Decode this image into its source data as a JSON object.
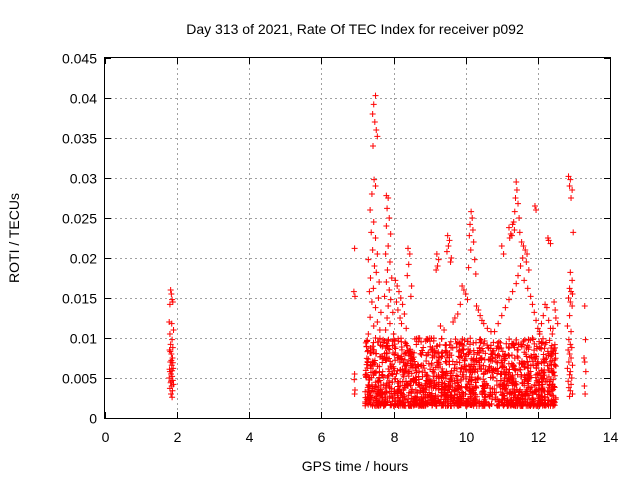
{
  "chart_data": {
    "type": "scatter",
    "title": "Day 313 of 2021, Rate Of TEC Index for receiver p092",
    "xlabel": "GPS time / hours",
    "ylabel": "ROTI / TECUs",
    "xlim": [
      0,
      14
    ],
    "ylim": [
      0,
      0.045
    ],
    "xticks": [
      0,
      2,
      4,
      6,
      8,
      10,
      12,
      14
    ],
    "xtick_labels": [
      "0",
      "2",
      "4",
      "6",
      "8",
      "10",
      "12",
      "14"
    ],
    "yticks": [
      0,
      0.005,
      0.01,
      0.015,
      0.02,
      0.025,
      0.03,
      0.035,
      0.04,
      0.045
    ],
    "ytick_labels": [
      "0",
      "0.005",
      "0.01",
      "0.015",
      "0.02",
      "0.025",
      "0.03",
      "0.035",
      "0.04",
      "0.045"
    ],
    "grid": true,
    "marker": "+",
    "series": [
      {
        "name": "p092",
        "color": "#ff0000",
        "points": [
          [
            1.82,
            0.016
          ],
          [
            1.84,
            0.0155
          ],
          [
            1.86,
            0.0148
          ],
          [
            1.8,
            0.0142
          ],
          [
            1.88,
            0.0145
          ],
          [
            1.78,
            0.012
          ],
          [
            1.85,
            0.0118
          ],
          [
            1.9,
            0.011
          ],
          [
            1.8,
            0.0105
          ],
          [
            1.86,
            0.0098
          ],
          [
            1.82,
            0.0092
          ],
          [
            1.88,
            0.0088
          ],
          [
            1.79,
            0.0085
          ],
          [
            1.84,
            0.008
          ],
          [
            1.87,
            0.0075
          ],
          [
            1.81,
            0.007
          ],
          [
            1.85,
            0.0066
          ],
          [
            1.89,
            0.0062
          ],
          [
            1.8,
            0.0058
          ],
          [
            1.83,
            0.0055
          ],
          [
            1.86,
            0.0052
          ],
          [
            1.78,
            0.005
          ],
          [
            1.88,
            0.0047
          ],
          [
            1.82,
            0.0044
          ],
          [
            1.85,
            0.004
          ],
          [
            1.8,
            0.0037
          ],
          [
            1.87,
            0.0034
          ],
          [
            1.83,
            0.003
          ],
          [
            1.86,
            0.0026
          ],
          [
            1.9,
            0.0042
          ],
          [
            1.79,
            0.0061
          ],
          [
            1.84,
            0.0072
          ],
          [
            1.81,
            0.0083
          ],
          [
            1.88,
            0.0069
          ],
          [
            1.86,
            0.0059
          ],
          [
            1.83,
            0.0046
          ],
          [
            6.92,
            0.0212
          ],
          [
            6.9,
            0.0158
          ],
          [
            6.93,
            0.0152
          ],
          [
            6.92,
            0.0055
          ],
          [
            6.91,
            0.0048
          ],
          [
            6.93,
            0.0035
          ],
          [
            6.92,
            0.003
          ],
          [
            7.5,
            0.0403
          ],
          [
            7.45,
            0.0392
          ],
          [
            7.42,
            0.038
          ],
          [
            7.48,
            0.037
          ],
          [
            7.52,
            0.036
          ],
          [
            7.55,
            0.0352
          ],
          [
            7.43,
            0.034
          ],
          [
            7.46,
            0.0298
          ],
          [
            7.5,
            0.029
          ],
          [
            7.4,
            0.028
          ],
          [
            7.35,
            0.026
          ],
          [
            7.45,
            0.0245
          ],
          [
            7.38,
            0.0232
          ],
          [
            7.5,
            0.0225
          ],
          [
            7.42,
            0.021
          ],
          [
            7.55,
            0.0205
          ],
          [
            7.3,
            0.0198
          ],
          [
            7.47,
            0.019
          ],
          [
            7.52,
            0.0182
          ],
          [
            7.36,
            0.0175
          ],
          [
            7.6,
            0.017
          ],
          [
            7.44,
            0.0162
          ],
          [
            7.33,
            0.0158
          ],
          [
            7.58,
            0.015
          ],
          [
            7.4,
            0.0145
          ],
          [
            7.5,
            0.0138
          ],
          [
            7.65,
            0.0132
          ],
          [
            7.35,
            0.0126
          ],
          [
            7.55,
            0.012
          ],
          [
            7.45,
            0.0115
          ],
          [
            7.62,
            0.011
          ],
          [
            7.3,
            0.0105
          ],
          [
            7.5,
            0.01
          ],
          [
            7.8,
            0.0278
          ],
          [
            7.85,
            0.0275
          ],
          [
            7.82,
            0.0262
          ],
          [
            7.88,
            0.025
          ],
          [
            7.8,
            0.024
          ],
          [
            7.92,
            0.023
          ],
          [
            7.85,
            0.0215
          ],
          [
            7.78,
            0.0205
          ],
          [
            7.9,
            0.0195
          ],
          [
            7.83,
            0.0185
          ],
          [
            7.95,
            0.0175
          ],
          [
            7.8,
            0.017
          ],
          [
            7.88,
            0.016
          ],
          [
            7.75,
            0.0152
          ],
          [
            7.92,
            0.0148
          ],
          [
            7.85,
            0.014
          ],
          [
            7.98,
            0.0132
          ],
          [
            7.82,
            0.0125
          ],
          [
            7.9,
            0.0118
          ],
          [
            7.78,
            0.011
          ],
          [
            8.0,
            0.0105
          ],
          [
            7.86,
            0.0098
          ],
          [
            8.05,
            0.0172
          ],
          [
            8.1,
            0.0165
          ],
          [
            8.15,
            0.0158
          ],
          [
            8.2,
            0.015
          ],
          [
            8.08,
            0.0145
          ],
          [
            8.25,
            0.0142
          ],
          [
            8.12,
            0.0135
          ],
          [
            8.3,
            0.013
          ],
          [
            8.18,
            0.0125
          ],
          [
            8.22,
            0.0118
          ],
          [
            8.35,
            0.0112
          ],
          [
            8.4,
            0.0212
          ],
          [
            8.45,
            0.0205
          ],
          [
            8.42,
            0.0192
          ],
          [
            8.38,
            0.0178
          ],
          [
            8.5,
            0.0165
          ],
          [
            8.48,
            0.0152
          ],
          [
            9.2,
            0.0205
          ],
          [
            9.25,
            0.0198
          ],
          [
            9.22,
            0.019
          ],
          [
            9.18,
            0.0185
          ],
          [
            9.5,
            0.0228
          ],
          [
            9.55,
            0.0222
          ],
          [
            9.52,
            0.0215
          ],
          [
            9.48,
            0.0208
          ],
          [
            9.6,
            0.02
          ],
          [
            9.58,
            0.0195
          ],
          [
            10.15,
            0.0258
          ],
          [
            10.18,
            0.025
          ],
          [
            10.12,
            0.0242
          ],
          [
            10.2,
            0.0235
          ],
          [
            10.1,
            0.0228
          ],
          [
            10.22,
            0.022
          ],
          [
            10.14,
            0.021
          ],
          [
            10.25,
            0.0198
          ],
          [
            10.08,
            0.0188
          ],
          [
            10.28,
            0.018
          ],
          [
            9.9,
            0.0165
          ],
          [
            9.95,
            0.016
          ],
          [
            10.0,
            0.0155
          ],
          [
            10.05,
            0.0148
          ],
          [
            9.85,
            0.0142
          ],
          [
            10.3,
            0.014
          ],
          [
            10.35,
            0.0135
          ],
          [
            9.78,
            0.013
          ],
          [
            10.4,
            0.0128
          ],
          [
            9.7,
            0.0125
          ],
          [
            10.45,
            0.0122
          ],
          [
            9.65,
            0.012
          ],
          [
            10.5,
            0.0118
          ],
          [
            9.3,
            0.0115
          ],
          [
            10.6,
            0.0112
          ],
          [
            9.4,
            0.011
          ],
          [
            10.7,
            0.0108
          ],
          [
            11.0,
            0.0215
          ],
          [
            11.05,
            0.0205
          ],
          [
            11.2,
            0.0238
          ],
          [
            11.25,
            0.023
          ],
          [
            11.22,
            0.0225
          ],
          [
            11.3,
            0.0242
          ],
          [
            11.35,
            0.0235
          ],
          [
            11.4,
            0.0295
          ],
          [
            11.42,
            0.0285
          ],
          [
            11.38,
            0.0275
          ],
          [
            11.45,
            0.0268
          ],
          [
            11.36,
            0.0258
          ],
          [
            11.48,
            0.025
          ],
          [
            11.33,
            0.0245
          ],
          [
            11.5,
            0.0232
          ],
          [
            11.28,
            0.0228
          ],
          [
            11.55,
            0.022
          ],
          [
            11.6,
            0.0215
          ],
          [
            11.65,
            0.021
          ],
          [
            11.7,
            0.0205
          ],
          [
            11.58,
            0.02
          ],
          [
            11.68,
            0.0195
          ],
          [
            11.52,
            0.019
          ],
          [
            11.75,
            0.0185
          ],
          [
            11.45,
            0.0178
          ],
          [
            11.62,
            0.0172
          ],
          [
            11.4,
            0.0168
          ],
          [
            11.72,
            0.0162
          ],
          [
            11.3,
            0.0158
          ],
          [
            11.8,
            0.0152
          ],
          [
            11.2,
            0.0148
          ],
          [
            11.85,
            0.0142
          ],
          [
            11.1,
            0.0138
          ],
          [
            11.9,
            0.0132
          ],
          [
            11.0,
            0.0128
          ],
          [
            11.95,
            0.0122
          ],
          [
            10.9,
            0.0118
          ],
          [
            12.0,
            0.0112
          ],
          [
            10.8,
            0.0108
          ],
          [
            12.05,
            0.0105
          ],
          [
            11.92,
            0.0265
          ],
          [
            11.95,
            0.026
          ],
          [
            12.2,
            0.0142
          ],
          [
            12.25,
            0.0138
          ],
          [
            12.15,
            0.0128
          ],
          [
            12.3,
            0.0122
          ],
          [
            12.1,
            0.0118
          ],
          [
            12.35,
            0.0112
          ],
          [
            12.05,
            0.0108
          ],
          [
            12.4,
            0.0105
          ],
          [
            12.45,
            0.0145
          ],
          [
            12.48,
            0.0135
          ],
          [
            12.5,
            0.0125
          ],
          [
            12.55,
            0.0118
          ],
          [
            12.42,
            0.0112
          ],
          [
            12.3,
            0.0222
          ],
          [
            12.35,
            0.0218
          ],
          [
            12.28,
            0.0225
          ],
          [
            12.85,
            0.0302
          ],
          [
            12.9,
            0.0298
          ],
          [
            12.88,
            0.029
          ],
          [
            12.95,
            0.0285
          ],
          [
            12.92,
            0.0275
          ],
          [
            12.98,
            0.0232
          ],
          [
            12.9,
            0.0182
          ],
          [
            12.95,
            0.0172
          ],
          [
            12.88,
            0.0162
          ],
          [
            12.92,
            0.0158
          ],
          [
            12.96,
            0.0155
          ],
          [
            12.85,
            0.015
          ],
          [
            12.9,
            0.0145
          ],
          [
            12.95,
            0.014
          ],
          [
            12.88,
            0.0128
          ],
          [
            12.82,
            0.0115
          ],
          [
            12.92,
            0.0108
          ],
          [
            12.86,
            0.0098
          ],
          [
            12.9,
            0.0092
          ],
          [
            12.94,
            0.0088
          ],
          [
            12.84,
            0.0085
          ],
          [
            12.88,
            0.008
          ],
          [
            12.92,
            0.0075
          ],
          [
            12.86,
            0.007
          ],
          [
            12.96,
            0.0066
          ],
          [
            12.82,
            0.0062
          ],
          [
            12.9,
            0.0058
          ],
          [
            12.88,
            0.0054
          ],
          [
            12.94,
            0.005
          ],
          [
            12.84,
            0.0046
          ],
          [
            12.92,
            0.0042
          ],
          [
            12.86,
            0.0038
          ],
          [
            12.9,
            0.0034
          ],
          [
            12.96,
            0.003
          ],
          [
            12.88,
            0.0027
          ],
          [
            13.3,
            0.014
          ],
          [
            13.32,
            0.0098
          ],
          [
            13.28,
            0.0075
          ],
          [
            13.3,
            0.007
          ],
          [
            13.33,
            0.0058
          ],
          [
            13.29,
            0.004
          ],
          [
            13.31,
            0.003
          ]
        ],
        "dense_band": {
          "x_range": [
            7.2,
            12.5
          ],
          "y_range": [
            0.0015,
            0.01
          ],
          "note": "dense cloud of points filling this region"
        }
      }
    ]
  }
}
